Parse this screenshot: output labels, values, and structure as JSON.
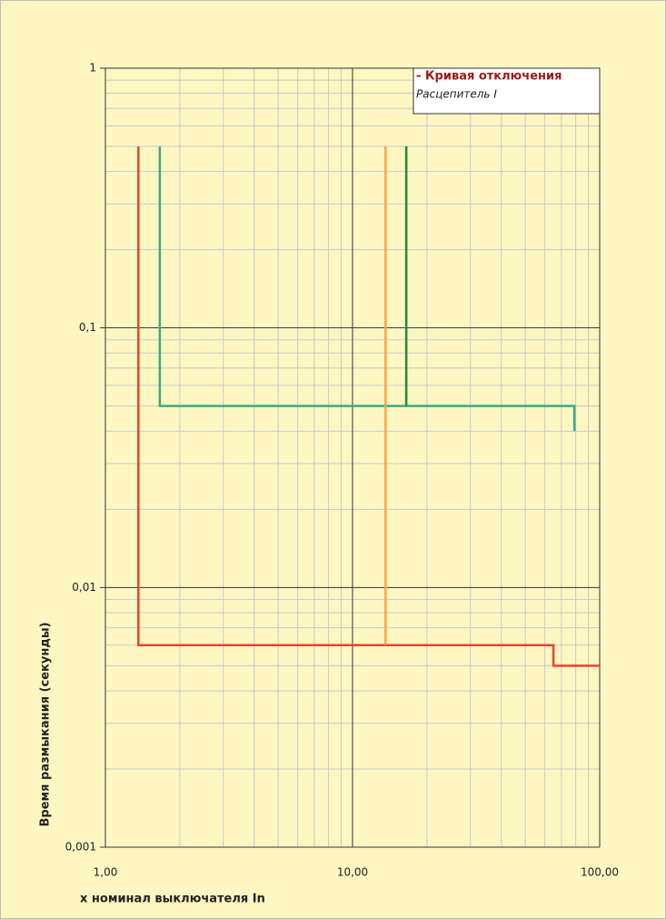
{
  "chart_data": {
    "type": "line",
    "xlabel": "x номинал выключателя In",
    "ylabel": "Время размыкания (секунды)",
    "legend_title": "- Кривая отключения",
    "legend_subtitle": "Расцепитель I",
    "xlog": true,
    "ylog": true,
    "grid": true,
    "xlim": [
      1,
      100
    ],
    "xticks": [
      {
        "value": 1,
        "label": "1,00"
      },
      {
        "value": 10,
        "label": "10,00"
      },
      {
        "value": 100,
        "label": "100,00"
      }
    ],
    "ylim": [
      0.001,
      1
    ],
    "yticks": [
      {
        "value": 0.001,
        "label": "0,001"
      },
      {
        "value": 0.01,
        "label": "0,01"
      },
      {
        "value": 0.1,
        "label": "0,1"
      },
      1
    ],
    "series": [
      {
        "color": "#e8452c",
        "x": [
          1.36,
          1.36,
          65,
          65,
          100
        ],
        "values": [
          0.5,
          0.006,
          0.006,
          0.005,
          0.005
        ]
      },
      {
        "color": "#3aaa7e",
        "x": [
          1.66,
          1.66,
          79,
          79
        ],
        "values": [
          0.5,
          0.05,
          0.05,
          0.04
        ]
      },
      {
        "color": "#1e8a3a",
        "x": [
          16.5,
          16.5
        ],
        "values": [
          0.5,
          0.05
        ]
      },
      {
        "color": "#f7a64a",
        "x": [
          13.6,
          13.6
        ],
        "values": [
          0.5,
          0.006
        ]
      }
    ]
  }
}
